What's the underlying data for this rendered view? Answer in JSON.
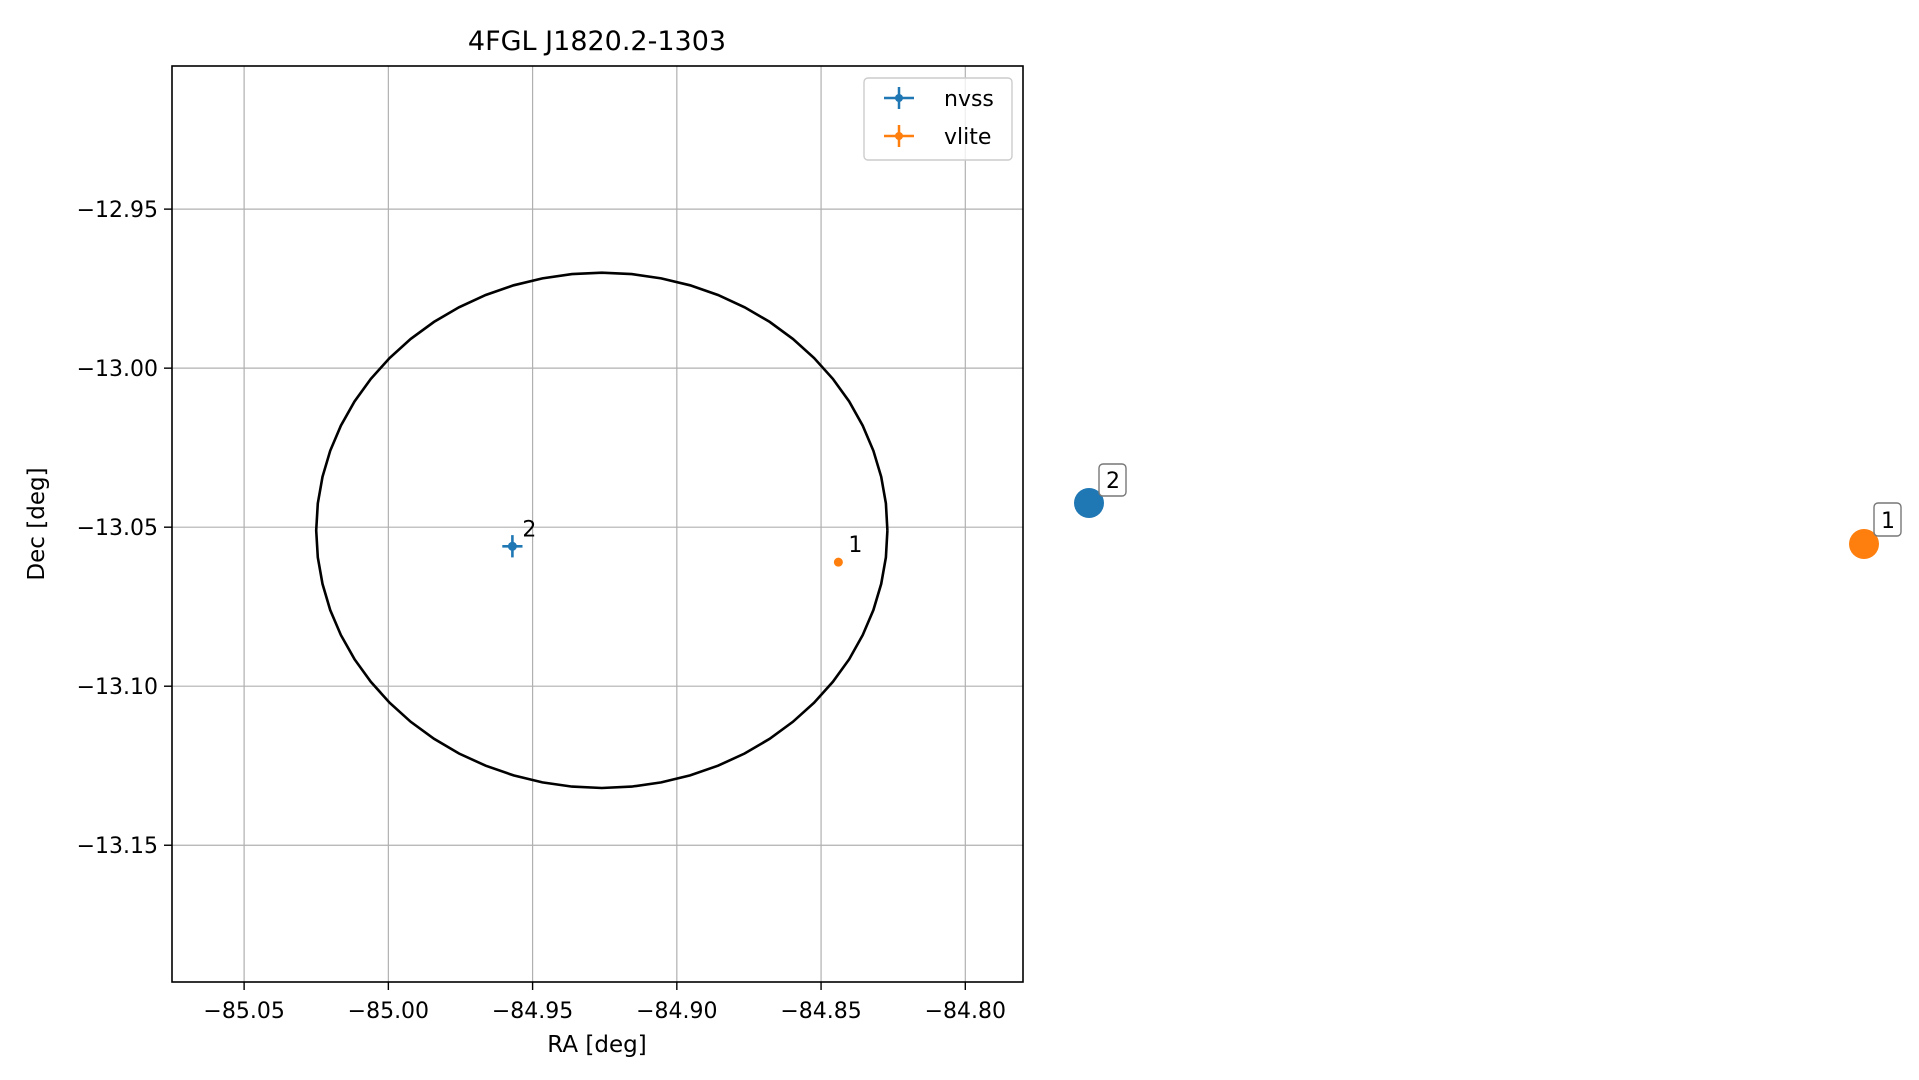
{
  "chart_data": [
    {
      "type": "scatter",
      "title": "4FGL J1820.2-1303",
      "xlabel": "RA [deg]",
      "ylabel": "Dec [deg]",
      "xlim": [
        -85.075,
        -84.78
      ],
      "ylim": [
        -13.193,
        -12.905
      ],
      "xticks": [
        -85.05,
        -85.0,
        -84.95,
        -84.9,
        -84.85,
        -84.8
      ],
      "xtick_labels": [
        "−85.05",
        "−85.00",
        "−84.95",
        "−84.90",
        "−84.85",
        "−84.80"
      ],
      "yticks": [
        -12.95,
        -13.0,
        -13.05,
        -13.1,
        -13.15
      ],
      "ytick_labels": [
        "−12.95",
        "−13.00",
        "−13.05",
        "−13.10",
        "−13.15"
      ],
      "grid": true,
      "legend_position": "top-right",
      "ellipse": {
        "center": [
          -84.926,
          -13.051
        ],
        "radius_ra": 0.099,
        "radius_dec": 0.081,
        "color": "#000000"
      },
      "series": [
        {
          "name": "nvss",
          "color": "#1f77b4",
          "marker": "errorbar",
          "points": [
            {
              "x": -84.957,
              "y": -13.056,
              "x_err": 0.0035,
              "y_err": 0.0035,
              "label": "2"
            }
          ]
        },
        {
          "name": "vlite",
          "color": "#ff7f0e",
          "marker": "errorbar",
          "points": [
            {
              "x": -84.844,
              "y": -13.061,
              "x_err": 0.0,
              "y_err": 0.0,
              "label": "1"
            }
          ]
        }
      ]
    }
  ],
  "side_markers": [
    {
      "label": "2",
      "color": "#1f77b4"
    },
    {
      "label": "1",
      "color": "#ff7f0e"
    }
  ]
}
